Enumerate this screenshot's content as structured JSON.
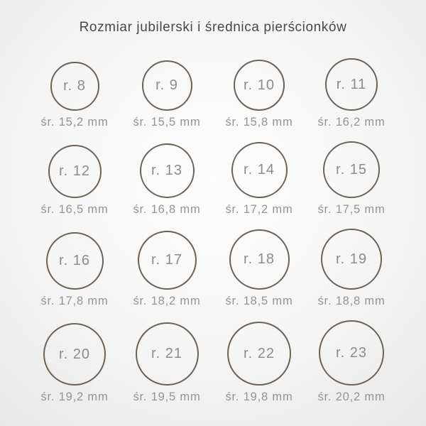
{
  "title": "Rozmiar jubilerski i średnica pierścionków",
  "colors": {
    "circle_stroke": "#6e6156",
    "size_text": "#8f8b87",
    "diameter_text": "#97938e",
    "title_text": "#4b4742"
  },
  "layout_hint": {
    "columns": 4
  },
  "rings": [
    {
      "size_label": "r. 8",
      "diameter_label": "śr. 15,2 mm",
      "diameter_mm": 15.2
    },
    {
      "size_label": "r. 9",
      "diameter_label": "śr. 15,5 mm",
      "diameter_mm": 15.5
    },
    {
      "size_label": "r. 10",
      "diameter_label": "śr. 15,8 mm",
      "diameter_mm": 15.8
    },
    {
      "size_label": "r. 11",
      "diameter_label": "śr. 16,2 mm",
      "diameter_mm": 16.2
    },
    {
      "size_label": "r. 12",
      "diameter_label": "śr. 16,5 mm",
      "diameter_mm": 16.5
    },
    {
      "size_label": "r. 13",
      "diameter_label": "śr. 16,8 mm",
      "diameter_mm": 16.8
    },
    {
      "size_label": "r. 14",
      "diameter_label": "śr. 17,2 mm",
      "diameter_mm": 17.2
    },
    {
      "size_label": "r. 15",
      "diameter_label": "śr. 17,5 mm",
      "diameter_mm": 17.5
    },
    {
      "size_label": "r. 16",
      "diameter_label": "śr. 17,8 mm",
      "diameter_mm": 17.8
    },
    {
      "size_label": "r. 17",
      "diameter_label": "śr. 18,2 mm",
      "diameter_mm": 18.2
    },
    {
      "size_label": "r. 18",
      "diameter_label": "śr. 18,5 mm",
      "diameter_mm": 18.5
    },
    {
      "size_label": "r. 19",
      "diameter_label": "śr. 18,8 mm",
      "diameter_mm": 18.8
    },
    {
      "size_label": "r. 20",
      "diameter_label": "śr. 19,2 mm",
      "diameter_mm": 19.2
    },
    {
      "size_label": "r. 21",
      "diameter_label": "śr. 19,5 mm",
      "diameter_mm": 19.5
    },
    {
      "size_label": "r. 22",
      "diameter_label": "śr. 19,8 mm",
      "diameter_mm": 19.8
    },
    {
      "size_label": "r. 23",
      "diameter_label": "śr. 20,2 mm",
      "diameter_mm": 20.2
    }
  ]
}
